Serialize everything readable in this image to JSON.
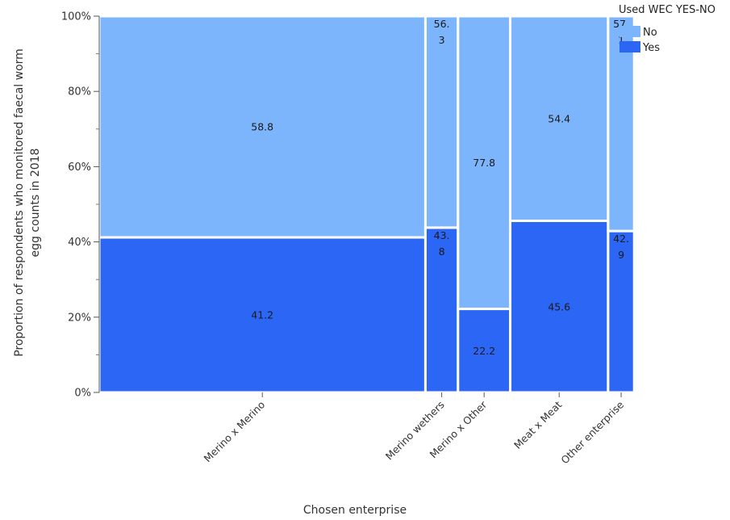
{
  "chart_data": {
    "type": "mosaic",
    "xlabel": "Chosen enterprise",
    "ylabel": "Proportion of respondents who monitored faecal worm egg counts in 2018",
    "ylabel_lines": [
      "Proportion of respondents who monitored faecal worm",
      "egg counts in 2018"
    ],
    "ylim": [
      0,
      100
    ],
    "yticks": [
      {
        "value": 0,
        "label": "0%"
      },
      {
        "value": 20,
        "label": "20%"
      },
      {
        "value": 40,
        "label": "40%"
      },
      {
        "value": 60,
        "label": "60%"
      },
      {
        "value": 80,
        "label": "80%"
      },
      {
        "value": 100,
        "label": "100%"
      }
    ],
    "categories": [
      "Merino x Merino",
      "Merino wethers",
      "Merino x Other",
      "Meat x Meat",
      "Other enterprise"
    ],
    "category_share": [
      0.6329,
      0.0632,
      0.1013,
      0.1899,
      0.0506
    ],
    "series": [
      {
        "name": "Yes",
        "color": "#2c66f5",
        "values": [
          41.2,
          43.8,
          22.2,
          45.6,
          42.9
        ],
        "labels": [
          [
            "41.2"
          ],
          [
            "43.",
            "8"
          ],
          [
            "22.2"
          ],
          [
            "45.6"
          ],
          [
            "42.",
            "9"
          ]
        ]
      },
      {
        "name": "No",
        "color": "#7db5fc",
        "values": [
          58.8,
          56.3,
          77.8,
          54.4,
          57.1
        ],
        "labels": [
          [
            "58.8"
          ],
          [
            "56.",
            "3"
          ],
          [
            "77.8"
          ],
          [
            "54.4"
          ],
          [
            "57.",
            "1"
          ]
        ]
      }
    ],
    "legend": {
      "title": "Used WEC YES-NO",
      "placement": "top-right",
      "entries": [
        {
          "name": "No",
          "color": "#7db5fc"
        },
        {
          "name": "Yes",
          "color": "#2c66f5"
        }
      ]
    },
    "grid": false
  }
}
